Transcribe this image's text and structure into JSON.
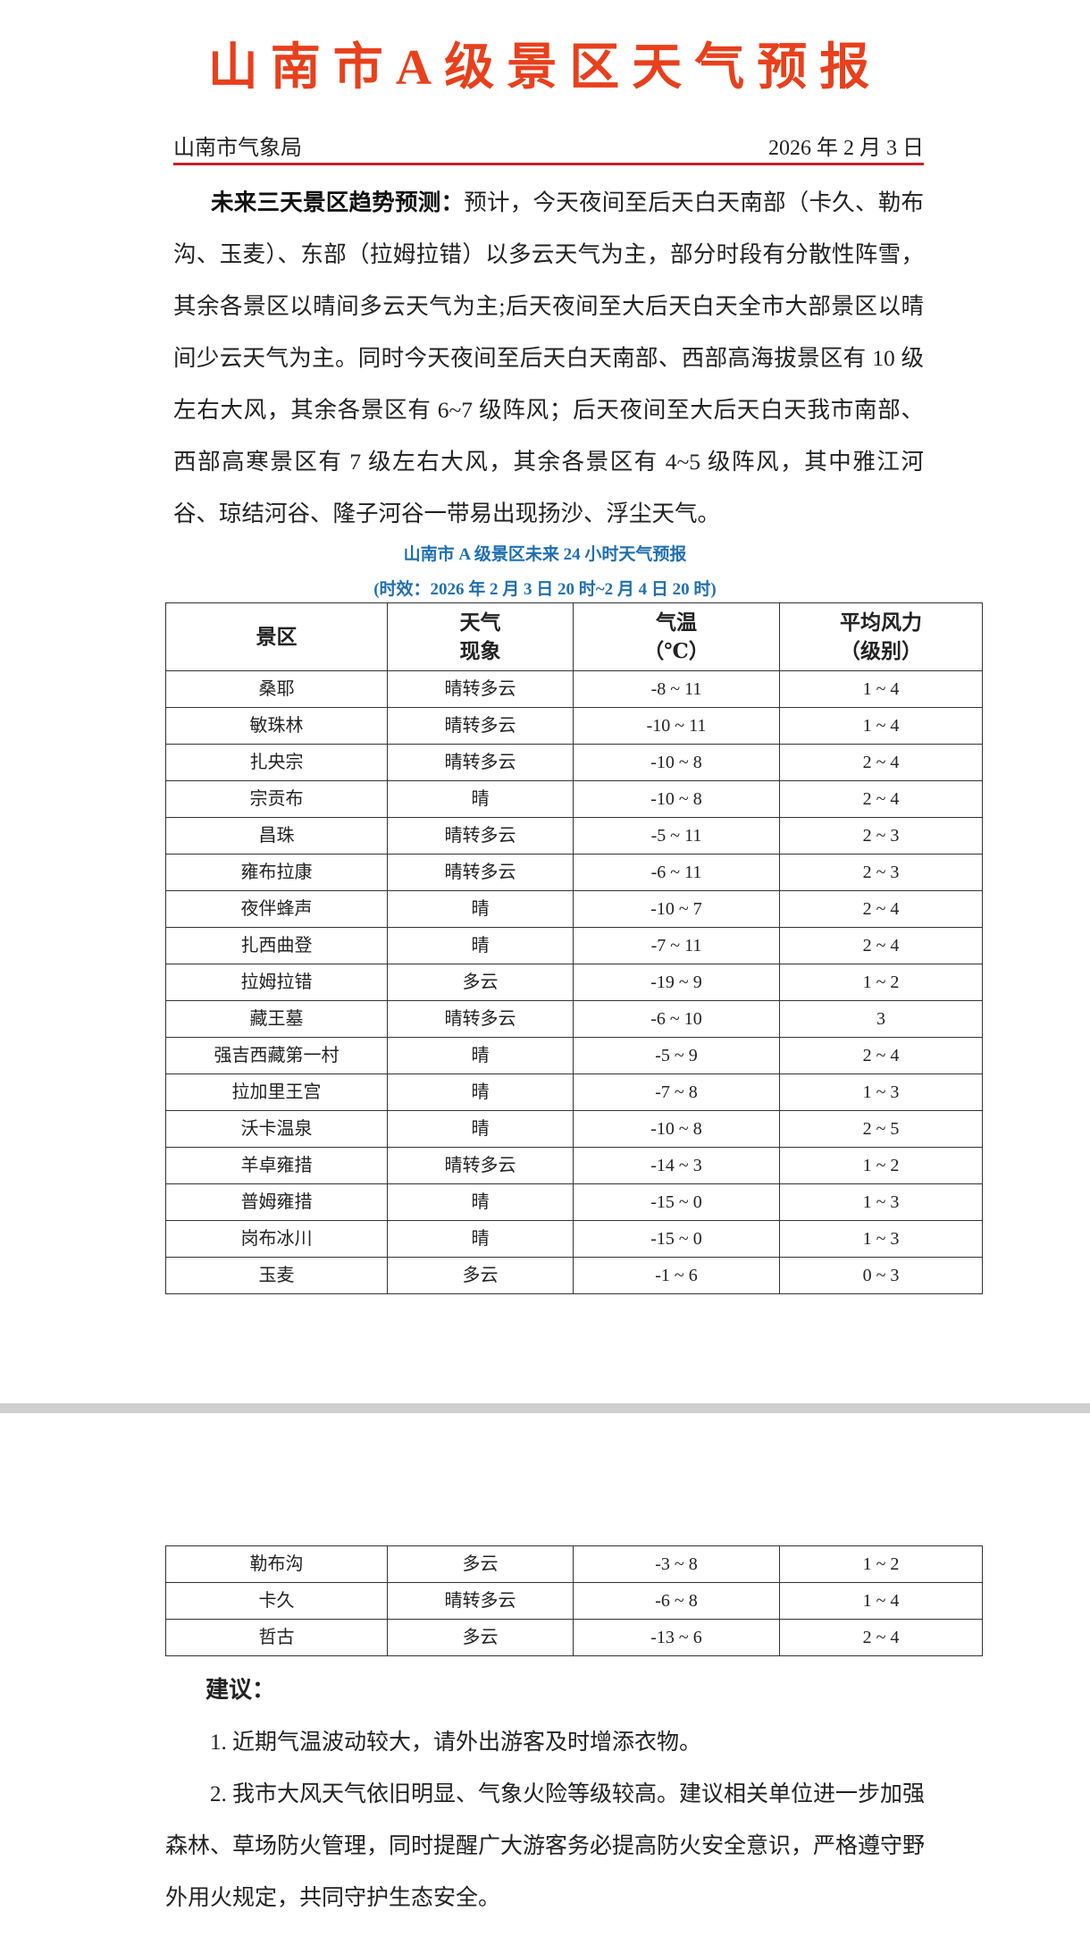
{
  "title": "山南市A级景区天气预报",
  "header": {
    "issuer": "山南市气象局",
    "date": "2026 年 2 月 3 日"
  },
  "trend": {
    "label": "未来三天景区趋势预测：",
    "text": "预计，今天夜间至后天白天南部（卡久、勒布沟、玉麦）、东部（拉姆拉错）以多云天气为主，部分时段有分散性阵雪，其余各景区以晴间多云天气为主;后天夜间至大后天白天全市大部景区以晴间少云天气为主。同时今天夜间至后天白天南部、西部高海拔景区有 10 级左右大风，其余各景区有 6~7 级阵风；后天夜间至大后天白天我市南部、西部高寒景区有 7 级左右大风，其余各景区有 4~5 级阵风，其中雅江河谷、琼结河谷、隆子河谷一带易出现扬沙、浮尘天气。"
  },
  "table_caption": "山南市 A 级景区未来 24 小时天气预报",
  "table_period": "(时效：2026 年 2 月 3 日 20 时~2 月 4 日 20 时)",
  "columns": [
    {
      "l1": "景区",
      "l2": ""
    },
    {
      "l1": "天气",
      "l2": "现象"
    },
    {
      "l1": "气温",
      "l2": "（℃）"
    },
    {
      "l1": "平均风力",
      "l2": "（级别）"
    }
  ],
  "rows_page1": [
    [
      "桑耶",
      "晴转多云",
      "-8 ~ 11",
      "1 ~ 4"
    ],
    [
      "敏珠林",
      "晴转多云",
      "-10 ~ 11",
      "1 ~ 4"
    ],
    [
      "扎央宗",
      "晴转多云",
      "-10 ~ 8",
      "2 ~ 4"
    ],
    [
      "宗贡布",
      "晴",
      "-10 ~ 8",
      "2 ~ 4"
    ],
    [
      "昌珠",
      "晴转多云",
      "-5 ~ 11",
      "2 ~ 3"
    ],
    [
      "雍布拉康",
      "晴转多云",
      "-6 ~ 11",
      "2 ~ 3"
    ],
    [
      "夜伴蜂声",
      "晴",
      "-10 ~ 7",
      "2 ~ 4"
    ],
    [
      "扎西曲登",
      "晴",
      "-7 ~ 11",
      "2 ~ 4"
    ],
    [
      "拉姆拉错",
      "多云",
      "-19 ~ 9",
      "1 ~ 2"
    ],
    [
      "藏王墓",
      "晴转多云",
      "-6 ~ 10",
      "3"
    ],
    [
      "强吉西藏第一村",
      "晴",
      "-5 ~ 9",
      "2 ~ 4"
    ],
    [
      "拉加里王宫",
      "晴",
      "-7 ~ 8",
      "1 ~ 3"
    ],
    [
      "沃卡温泉",
      "晴",
      "-10 ~ 8",
      "2 ~ 5"
    ],
    [
      "羊卓雍措",
      "晴转多云",
      "-14 ~ 3",
      "1 ~ 2"
    ],
    [
      "普姆雍措",
      "晴",
      "-15 ~ 0",
      "1 ~ 3"
    ],
    [
      "岗布冰川",
      "晴",
      "-15 ~ 0",
      "1 ~ 3"
    ],
    [
      "玉麦",
      "多云",
      "-1 ~ 6",
      "0 ~ 3"
    ]
  ],
  "rows_page2": [
    [
      "勒布沟",
      "多云",
      "-3 ~ 8",
      "1 ~ 2"
    ],
    [
      "卡久",
      "晴转多云",
      "-6 ~ 8",
      "1 ~ 4"
    ],
    [
      "哲古",
      "多云",
      "-13 ~ 6",
      "2 ~ 4"
    ]
  ],
  "suggestions": {
    "title": "建议：",
    "items": [
      "1.  近期气温波动较大，请外出游客及时增添衣物。",
      "2.  我市大风天气依旧明显、气象火险等级较高。建议相关单位进一步加强森林、草场防火管理，同时提醒广大游客务必提高防火安全意识，严格遵守野外用火规定，共同守护生态安全。"
    ]
  },
  "colors": {
    "title": "#e8401c",
    "rule": "#c8202a",
    "caption": "#1f6fb0",
    "page_gap": "#cfcfcf"
  }
}
